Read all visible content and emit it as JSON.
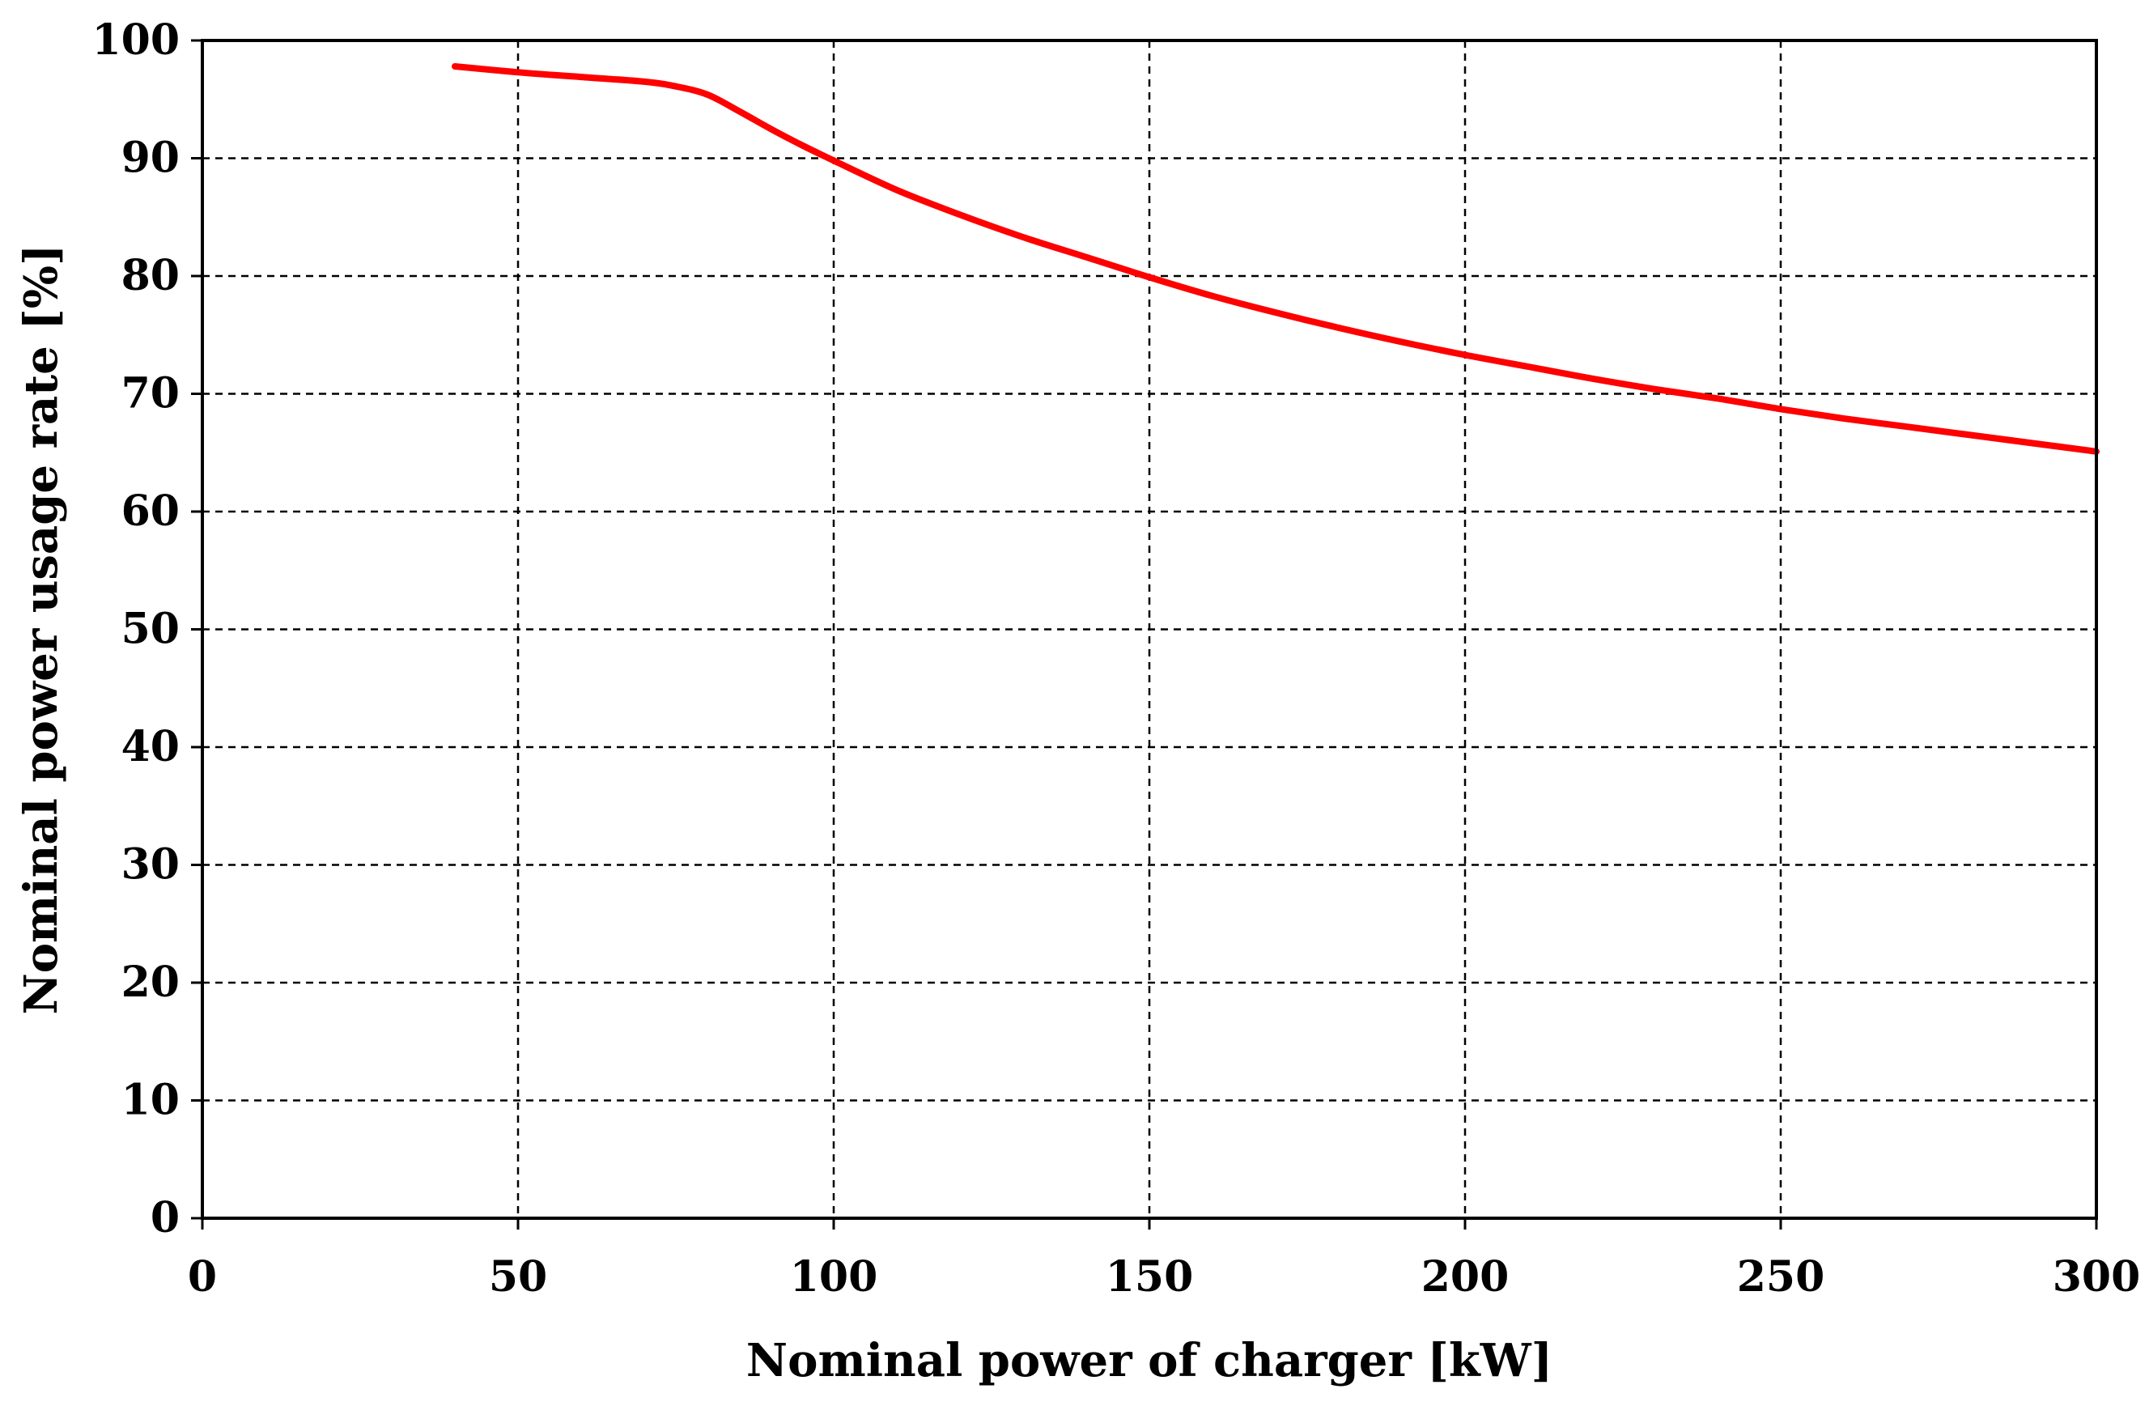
{
  "chart_data": {
    "type": "line",
    "title": "",
    "xlabel": "Nominal power of charger [kW]",
    "ylabel": "Nominal power usage rate [%]",
    "xlim": [
      0,
      300
    ],
    "ylim": [
      0,
      100
    ],
    "x_ticks": [
      0,
      50,
      100,
      150,
      200,
      250,
      300
    ],
    "y_ticks": [
      0,
      10,
      20,
      30,
      40,
      50,
      60,
      70,
      80,
      90,
      100
    ],
    "grid": true,
    "series": [
      {
        "color": "#ff0000",
        "x": [
          40,
          50,
          60,
          70,
          75,
          80,
          85,
          90,
          95,
          100,
          110,
          120,
          130,
          140,
          150,
          160,
          170,
          180,
          190,
          200,
          210,
          220,
          230,
          240,
          250,
          260,
          270,
          280,
          290,
          300
        ],
        "y": [
          97.8,
          97.3,
          96.9,
          96.5,
          96.1,
          95.4,
          94.0,
          92.5,
          91.1,
          89.8,
          87.3,
          85.2,
          83.3,
          81.6,
          79.9,
          78.3,
          76.9,
          75.6,
          74.4,
          73.3,
          72.3,
          71.3,
          70.4,
          69.6,
          68.7,
          67.9,
          67.2,
          66.5,
          65.8,
          65.1
        ]
      }
    ]
  }
}
